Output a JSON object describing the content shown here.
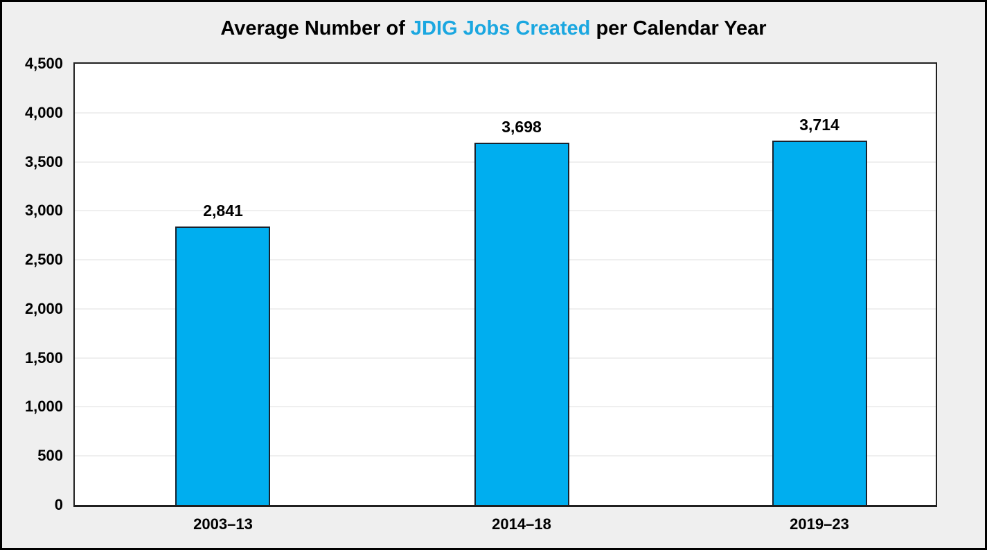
{
  "title": {
    "prefix": "Average Number of ",
    "highlight": "JDIG Jobs Created",
    "suffix": " per Calendar Year"
  },
  "colors": {
    "title_highlight": "#1BA7E0",
    "bar_fill": "#00AEEF",
    "bar_border": "#18222E",
    "figure_background": "#EFEFEF",
    "plot_background": "#FFFFFF",
    "gridline": "#EFEFEF",
    "text": "#000000"
  },
  "chart_data": {
    "type": "bar",
    "title": "Average Number of JDIG Jobs Created per Calendar Year",
    "categories": [
      "2003–13",
      "2014–18",
      "2019–23"
    ],
    "values": [
      2841,
      3698,
      3714
    ],
    "value_labels": [
      "2,841",
      "3,698",
      "3,714"
    ],
    "xlabel": "",
    "ylabel": "",
    "ylim": [
      0,
      4500
    ],
    "ytick_step": 500,
    "ytick_labels": [
      "0",
      "500",
      "1,000",
      "1,500",
      "2,000",
      "2,500",
      "3,000",
      "3,500",
      "4,000",
      "4,500"
    ],
    "grid": "horizontal",
    "legend": "none"
  }
}
